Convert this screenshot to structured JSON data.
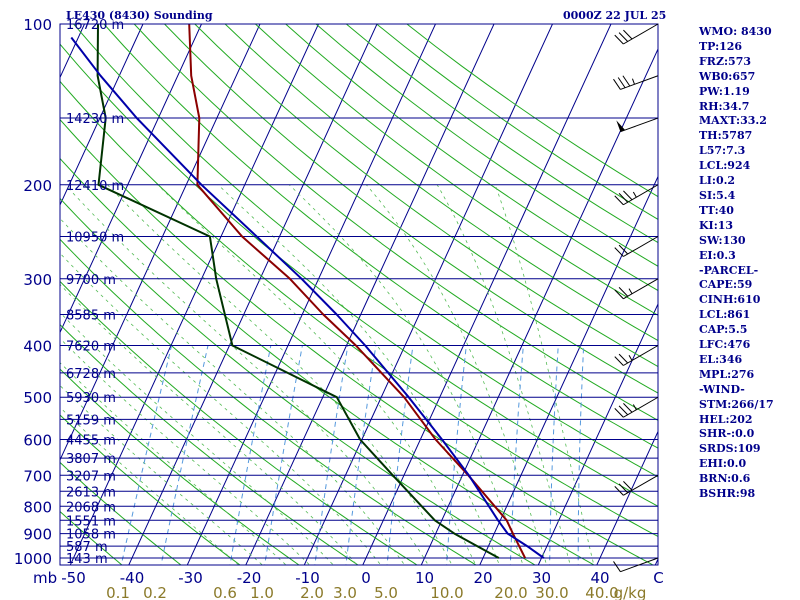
{
  "header": {
    "station": "LE430 (8430) Sounding",
    "time": "0000Z 22 JUL 25"
  },
  "indices": [
    "WMO: 8430",
    "TP:126",
    "FRZ:573",
    "WB0:657",
    "PW:1.19",
    "RH:34.7",
    "MAXT:33.2",
    "TH:5787",
    "L57:7.3",
    "LCL:924",
    "LI:0.2",
    "SI:5.4",
    "TT:40",
    "KI:13",
    "SW:130",
    "EI:0.3",
    "-PARCEL-",
    "CAPE:59",
    "CINH:610",
    "LCL:861",
    "CAP:5.5",
    "LFC:476",
    "EL:346",
    "MPL:276",
    "-WIND-",
    "STM:266/17",
    "HEL:202",
    "SHR-:0.0",
    "SRDS:109",
    "EHI:0.0",
    "BRN:0.6",
    "BSHR:98"
  ],
  "colors": {
    "isobar": "#00008b",
    "isotherm": "#00008b",
    "dry_adiabat": "#22aa22",
    "moist_adiabat": "#55bb55",
    "mixing_ratio": "#5599dd",
    "temperature": "#8b0000",
    "dewpoint": "#003300",
    "parcel": "#0000aa",
    "text": "#00008b",
    "mixing_label": "#8b7a2a",
    "wind": "#000000"
  },
  "chart_data": {
    "type": "line",
    "title": "LE430 (8430) Sounding",
    "subtitle": "0000Z 22 JUL 25",
    "pressure_unit": "mb",
    "mixing_ratio_unit": "g/kg",
    "pressure_levels": [
      100,
      200,
      300,
      400,
      500,
      600,
      700,
      800,
      900,
      1000
    ],
    "pressure_range": [
      100,
      1050
    ],
    "temperature_ticks": [
      -50,
      -40,
      -30,
      -20,
      -10,
      0,
      10,
      20,
      30,
      40,
      "C"
    ],
    "mixing_ratio_labels": [
      "0.1",
      "0.2",
      "0.6",
      "1.0",
      "2.0",
      "3.0",
      "5.0",
      "10.0",
      "20.0",
      "30.0",
      "40.0"
    ],
    "heights": [
      {
        "p": 100,
        "label": "16720 m"
      },
      {
        "p": 150,
        "label": "14230 m"
      },
      {
        "p": 200,
        "label": "12410 m"
      },
      {
        "p": 250,
        "label": "10950 m"
      },
      {
        "p": 300,
        "label": "9700 m"
      },
      {
        "p": 350,
        "label": "8585 m"
      },
      {
        "p": 400,
        "label": "7620 m"
      },
      {
        "p": 450,
        "label": "6728 m"
      },
      {
        "p": 500,
        "label": "5930 m"
      },
      {
        "p": 550,
        "label": "5159 m"
      },
      {
        "p": 600,
        "label": "4455 m"
      },
      {
        "p": 650,
        "label": "3807 m"
      },
      {
        "p": 700,
        "label": "3207 m"
      },
      {
        "p": 750,
        "label": "2613 m"
      },
      {
        "p": 800,
        "label": "2068 m"
      },
      {
        "p": 850,
        "label": "1551 m"
      },
      {
        "p": 900,
        "label": "1058 m"
      },
      {
        "p": 950,
        "label": "587 m"
      },
      {
        "p": 1000,
        "label": "143 m"
      }
    ],
    "series": [
      {
        "key": "temperature",
        "points": [
          {
            "p": 1000,
            "t": 27.2
          },
          {
            "p": 900,
            "t": 23.2
          },
          {
            "p": 850,
            "t": 21.1
          },
          {
            "p": 700,
            "t": 11.0
          },
          {
            "p": 600,
            "t": 2.6
          },
          {
            "p": 500,
            "t": -6.1
          },
          {
            "p": 400,
            "t": -18.4
          },
          {
            "p": 350,
            "t": -26.4
          },
          {
            "p": 300,
            "t": -34.9
          },
          {
            "p": 250,
            "t": -46.4
          },
          {
            "p": 200,
            "t": -58.1
          },
          {
            "p": 150,
            "t": -63.0
          },
          {
            "p": 125,
            "t": -67.7
          },
          {
            "p": 100,
            "t": -72.1
          }
        ]
      },
      {
        "key": "dewpoint",
        "points": [
          {
            "p": 1000,
            "t": 22.7
          },
          {
            "p": 900,
            "t": 13.2
          },
          {
            "p": 850,
            "t": 8.8
          },
          {
            "p": 700,
            "t": -1.9
          },
          {
            "p": 600,
            "t": -10.3
          },
          {
            "p": 500,
            "t": -17.6
          },
          {
            "p": 400,
            "t": -39.5
          },
          {
            "p": 300,
            "t": -47.5
          },
          {
            "p": 250,
            "t": -51.9
          },
          {
            "p": 200,
            "t": -75.0
          },
          {
            "p": 150,
            "t": -79.0
          },
          {
            "p": 125,
            "t": -83.7
          },
          {
            "p": 100,
            "t": -87.7
          }
        ]
      },
      {
        "key": "parcel",
        "points": [
          {
            "p": 1000,
            "t": 30.4
          },
          {
            "p": 950,
            "t": 26.6
          },
          {
            "p": 900,
            "t": 22.3
          },
          {
            "p": 850,
            "t": 19.6
          },
          {
            "p": 700,
            "t": 11.1
          },
          {
            "p": 600,
            "t": 3.7
          },
          {
            "p": 500,
            "t": -5.3
          },
          {
            "p": 400,
            "t": -16.8
          },
          {
            "p": 350,
            "t": -24.1
          },
          {
            "p": 300,
            "t": -32.9
          },
          {
            "p": 250,
            "t": -43.9
          },
          {
            "p": 200,
            "t": -57.4
          },
          {
            "p": 150,
            "t": -73.7
          },
          {
            "p": 125,
            "t": -83.2
          },
          {
            "p": 106,
            "t": -91.2
          }
        ]
      }
    ],
    "winds": [
      {
        "p": 1000,
        "dir": 250,
        "spd": 10
      },
      {
        "p": 700,
        "dir": 240,
        "spd": 30
      },
      {
        "p": 500,
        "dir": 240,
        "spd": 35
      },
      {
        "p": 400,
        "dir": 240,
        "spd": 25
      },
      {
        "p": 300,
        "dir": 240,
        "spd": 25
      },
      {
        "p": 250,
        "dir": 240,
        "spd": 20
      },
      {
        "p": 200,
        "dir": 240,
        "spd": 35
      },
      {
        "p": 150,
        "dir": 250,
        "spd": 50
      },
      {
        "p": 125,
        "dir": 250,
        "spd": 35
      },
      {
        "p": 100,
        "dir": 240,
        "spd": 30
      }
    ]
  }
}
